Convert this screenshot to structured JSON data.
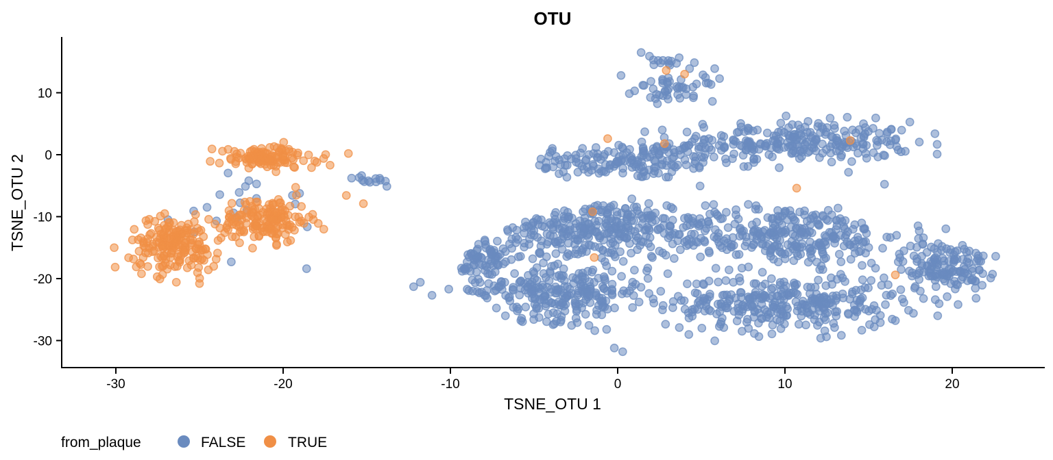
{
  "chart_data": {
    "type": "scatter",
    "title": "OTU",
    "xlabel": "TSNE_OTU 1",
    "ylabel": "TSNE_OTU 2",
    "xlim": [
      -33.5,
      25
    ],
    "ylim": [
      -34.5,
      19
    ],
    "x_ticks": [
      -30,
      -20,
      -10,
      0,
      10,
      20
    ],
    "y_ticks": [
      -30,
      -20,
      -10,
      0,
      10
    ],
    "grid": false,
    "legend": {
      "title": "from_plaque",
      "position": "bottom-left",
      "entries": [
        {
          "label": "FALSE",
          "color": "#6a8bbf"
        },
        {
          "label": "TRUE",
          "color": "#f08f46"
        }
      ]
    },
    "series": [
      {
        "name": "FALSE",
        "color": "#6a8bbf",
        "point_count": 2100,
        "clusters": [
          {
            "center": [
              0.5,
              -1.0
            ],
            "spread": [
              5.5,
              2.5
            ],
            "count": 160
          },
          {
            "center": [
              10.5,
              2.0
            ],
            "spread": [
              6.0,
              2.8
            ],
            "count": 260
          },
          {
            "center": [
              3.5,
              10.5
            ],
            "spread": [
              2.0,
              1.5
            ],
            "count": 45
          },
          {
            "center": [
              3.0,
              15.0
            ],
            "spread": [
              1.5,
              1.0
            ],
            "count": 12
          },
          {
            "center": [
              -1.5,
              -12.0
            ],
            "spread": [
              5.5,
              4.0
            ],
            "count": 300
          },
          {
            "center": [
              10.0,
              -13.0
            ],
            "spread": [
              6.0,
              4.0
            ],
            "count": 300
          },
          {
            "center": [
              -3.5,
              -22.0
            ],
            "spread": [
              4.5,
              4.0
            ],
            "count": 260
          },
          {
            "center": [
              10.0,
              -24.0
            ],
            "spread": [
              6.0,
              3.8
            ],
            "count": 330
          },
          {
            "center": [
              19.5,
              -18.0
            ],
            "spread": [
              2.2,
              3.5
            ],
            "count": 140
          },
          {
            "center": [
              -8.0,
              -17.0
            ],
            "spread": [
              1.4,
              3.0
            ],
            "count": 70
          },
          {
            "center": [
              -22.0,
              -8.0
            ],
            "spread": [
              3.5,
              5.0
            ],
            "count": 22
          },
          {
            "center": [
              -15.0,
              -4.0
            ],
            "spread": [
              0.8,
              0.6
            ],
            "count": 12
          }
        ],
        "sample_points": [
          [
            -12.2,
            -21.3
          ],
          [
            -11.8,
            -20.6
          ],
          [
            -11.1,
            -22.7
          ],
          [
            -10.1,
            -21.7
          ],
          [
            -4.3,
            -2.1
          ],
          [
            1.4,
            16.5
          ],
          [
            1.9,
            15.9
          ],
          [
            0.2,
            12.8
          ],
          [
            4.3,
            13.9
          ],
          [
            5.8,
            13.9
          ],
          [
            5.1,
            12.9
          ],
          [
            22.6,
            -16.4
          ],
          [
            22.3,
            -19.9
          ],
          [
            19.1,
            0.1
          ],
          [
            -13.8,
            -5.1
          ],
          [
            -0.2,
            -31.2
          ],
          [
            0.3,
            -31.8
          ],
          [
            -18.6,
            -18.4
          ],
          [
            -23.1,
            -17.3
          ]
        ]
      },
      {
        "name": "TRUE",
        "color": "#f08f46",
        "point_count": 500,
        "clusters": [
          {
            "center": [
              -26.5,
              -14.5
            ],
            "spread": [
              2.2,
              3.5
            ],
            "count": 190
          },
          {
            "center": [
              -21.0,
              -10.5
            ],
            "spread": [
              2.2,
              3.0
            ],
            "count": 160
          },
          {
            "center": [
              -21.0,
              -0.5
            ],
            "spread": [
              2.5,
              1.5
            ],
            "count": 120
          }
        ],
        "sample_points": [
          [
            2.9,
            13.6
          ],
          [
            4.0,
            13.0
          ],
          [
            -0.6,
            2.6
          ],
          [
            13.9,
            2.3
          ],
          [
            10.7,
            -5.4
          ],
          [
            -1.5,
            -9.2
          ],
          [
            -1.4,
            -16.6
          ],
          [
            16.6,
            -19.4
          ],
          [
            2.8,
            1.8
          ],
          [
            -30.1,
            -15.0
          ],
          [
            -15.2,
            -7.9
          ],
          [
            -16.1,
            0.2
          ],
          [
            -25.0,
            -20.8
          ]
        ]
      }
    ]
  }
}
